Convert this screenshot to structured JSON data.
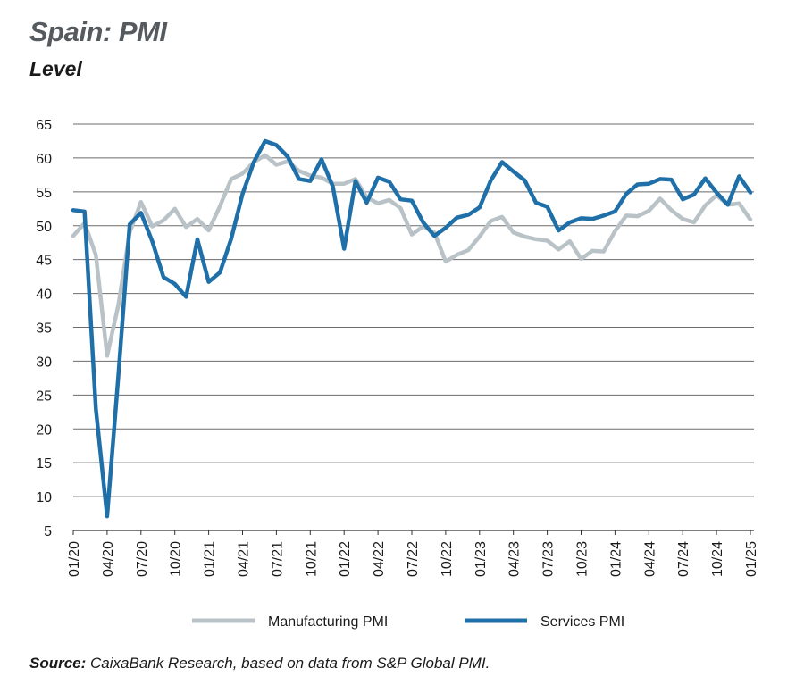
{
  "title": "Spain: PMI",
  "subtitle": "Level",
  "source": {
    "label": "Source:",
    "text": "CaixaBank Research, based on data from S&P Global PMI."
  },
  "colors": {
    "manufacturing": "#b9c3c7",
    "services": "#1f6fa8",
    "grid": "#6b6b6b"
  },
  "chart_data": {
    "type": "line",
    "title": "Spain: PMI",
    "subtitle": "Level",
    "xlabel": "",
    "ylabel": "",
    "ylim": [
      5,
      65
    ],
    "yticks": [
      5,
      10,
      15,
      20,
      25,
      30,
      35,
      40,
      45,
      50,
      55,
      60,
      65
    ],
    "xticks": [
      "01/20",
      "04/20",
      "07/20",
      "10/20",
      "01/21",
      "04/21",
      "07/21",
      "10/21",
      "01/22",
      "04/22",
      "07/22",
      "10/22",
      "01/23",
      "04/23",
      "07/23",
      "10/23",
      "01/24",
      "04/24",
      "07/24",
      "10/24",
      "01/25"
    ],
    "legend": "bottom-center",
    "series": [
      {
        "name": "Manufacturing PMI",
        "values": [
          48.5,
          50.4,
          45.7,
          30.8,
          38.3,
          49.0,
          53.5,
          49.9,
          50.8,
          52.5,
          49.8,
          51.0,
          49.3,
          52.9,
          56.9,
          57.7,
          59.4,
          60.4,
          59.0,
          59.5,
          58.1,
          57.4,
          57.1,
          56.2,
          56.2,
          56.9,
          54.2,
          53.3,
          53.8,
          52.6,
          48.7,
          49.9,
          49.0,
          44.7,
          45.7,
          46.4,
          48.4,
          50.7,
          51.3,
          49.0,
          48.4,
          48.0,
          47.8,
          46.5,
          47.7,
          45.1,
          46.3,
          46.2,
          49.2,
          51.5,
          51.4,
          52.2,
          54.0,
          52.3,
          51.0,
          50.5,
          53.0,
          54.5,
          53.1,
          53.3,
          50.9
        ]
      },
      {
        "name": "Services PMI",
        "values": [
          52.3,
          52.1,
          23.0,
          7.1,
          27.9,
          50.2,
          51.9,
          47.7,
          42.4,
          41.4,
          39.5,
          48.0,
          41.7,
          43.1,
          48.1,
          54.7,
          59.4,
          62.5,
          61.9,
          60.2,
          56.9,
          56.6,
          59.8,
          55.8,
          46.6,
          56.6,
          53.4,
          57.1,
          56.5,
          53.9,
          53.7,
          50.5,
          48.5,
          49.7,
          51.2,
          51.6,
          52.7,
          56.7,
          59.4,
          58.0,
          56.7,
          53.4,
          52.8,
          49.3,
          50.5,
          51.1,
          51.0,
          51.5,
          52.1,
          54.7,
          56.1,
          56.2,
          56.9,
          56.8,
          53.9,
          54.6,
          57.0,
          54.9,
          53.1,
          57.3,
          54.9
        ]
      }
    ]
  }
}
